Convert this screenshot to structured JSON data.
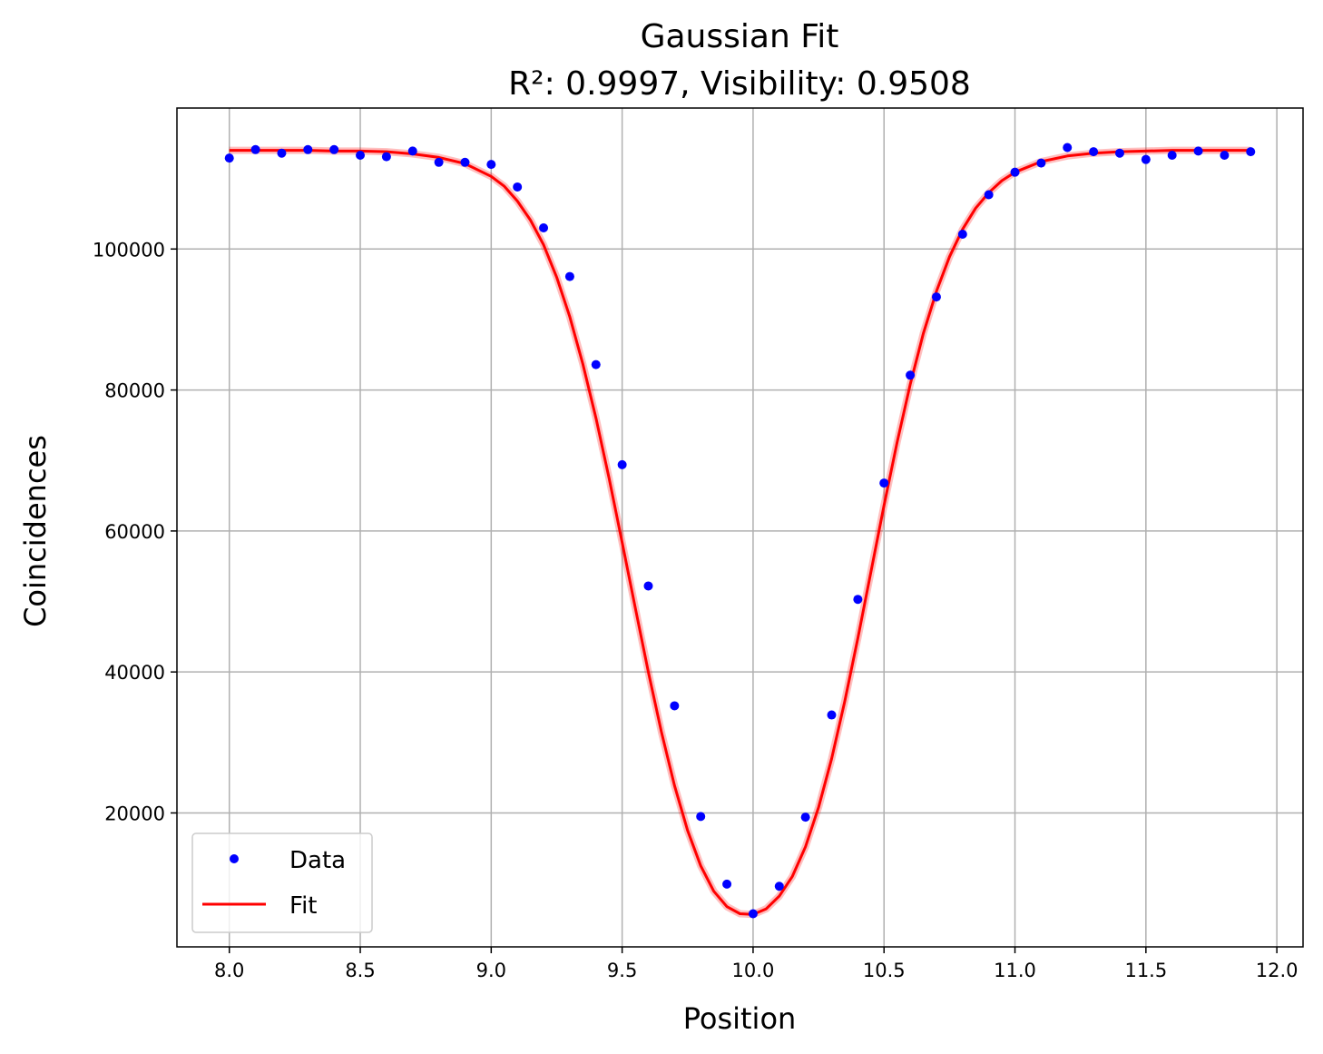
{
  "chart_data": {
    "type": "scatter",
    "title": "Gaussian Fit",
    "subtitle": "R²: 0.9997, Visibility: 0.9508",
    "xlabel": "Position",
    "ylabel": "Coincidences",
    "xlim": [
      7.8,
      12.1
    ],
    "ylim": [
      1000,
      120000
    ],
    "xticks": [
      8.0,
      8.5,
      9.0,
      9.5,
      10.0,
      10.5,
      11.0,
      11.5,
      12.0
    ],
    "xtick_labels": [
      "8.0",
      "8.5",
      "9.0",
      "9.5",
      "10.0",
      "10.5",
      "11.0",
      "11.5",
      "12.0"
    ],
    "yticks": [
      20000,
      40000,
      60000,
      80000,
      100000
    ],
    "ytick_labels": [
      "20000",
      "40000",
      "60000",
      "80000",
      "100000"
    ],
    "grid": true,
    "legend_position": "lower-left",
    "series": [
      {
        "name": "Data",
        "kind": "points",
        "color": "#0000ff",
        "x": [
          8.0,
          8.1,
          8.2,
          8.3,
          8.4,
          8.5,
          8.6,
          8.7,
          8.8,
          8.9,
          9.0,
          9.1,
          9.2,
          9.3,
          9.4,
          9.5,
          9.6,
          9.7,
          9.8,
          9.9,
          10.0,
          10.1,
          10.2,
          10.3,
          10.4,
          10.5,
          10.6,
          10.7,
          10.8,
          10.9,
          11.0,
          11.1,
          11.2,
          11.3,
          11.4,
          11.5,
          11.6,
          11.7,
          11.8,
          11.9
        ],
        "y": [
          112900,
          114100,
          113600,
          114100,
          114100,
          113300,
          113100,
          113900,
          112300,
          112300,
          112000,
          108800,
          103000,
          96100,
          83600,
          69400,
          52200,
          35200,
          19500,
          9900,
          5700,
          9600,
          19400,
          33900,
          50300,
          66800,
          82100,
          93200,
          102100,
          107700,
          110900,
          112200,
          114400,
          113800,
          113600,
          112700,
          113300,
          113900,
          113300,
          113800
        ]
      },
      {
        "name": "Fit",
        "kind": "line",
        "color": "#ff0000",
        "x": [
          8.0,
          8.1,
          8.2,
          8.3,
          8.4,
          8.5,
          8.6,
          8.7,
          8.8,
          8.9,
          9.0,
          9.05,
          9.1,
          9.15,
          9.2,
          9.25,
          9.3,
          9.35,
          9.4,
          9.45,
          9.5,
          9.55,
          9.6,
          9.65,
          9.7,
          9.75,
          9.8,
          9.85,
          9.9,
          9.95,
          10.0,
          10.05,
          10.1,
          10.15,
          10.2,
          10.25,
          10.3,
          10.35,
          10.4,
          10.45,
          10.5,
          10.55,
          10.6,
          10.65,
          10.7,
          10.75,
          10.8,
          10.85,
          10.9,
          10.95,
          11.0,
          11.1,
          11.2,
          11.3,
          11.4,
          11.5,
          11.6,
          11.7,
          11.8,
          11.9
        ],
        "y": [
          114000,
          114000,
          114000,
          114000,
          113900,
          113900,
          113800,
          113500,
          113000,
          112100,
          110300,
          108900,
          106800,
          104100,
          100600,
          96000,
          90400,
          83700,
          76000,
          67500,
          58400,
          49100,
          40000,
          31500,
          23900,
          17500,
          12500,
          8900,
          6700,
          5700,
          5600,
          6400,
          8200,
          11000,
          15200,
          20800,
          27700,
          35800,
          44800,
          54200,
          63600,
          72600,
          80800,
          88000,
          94000,
          98900,
          102800,
          105800,
          108000,
          109700,
          110900,
          112400,
          113200,
          113600,
          113800,
          113900,
          114000,
          114000,
          114000,
          114000
        ]
      }
    ]
  }
}
